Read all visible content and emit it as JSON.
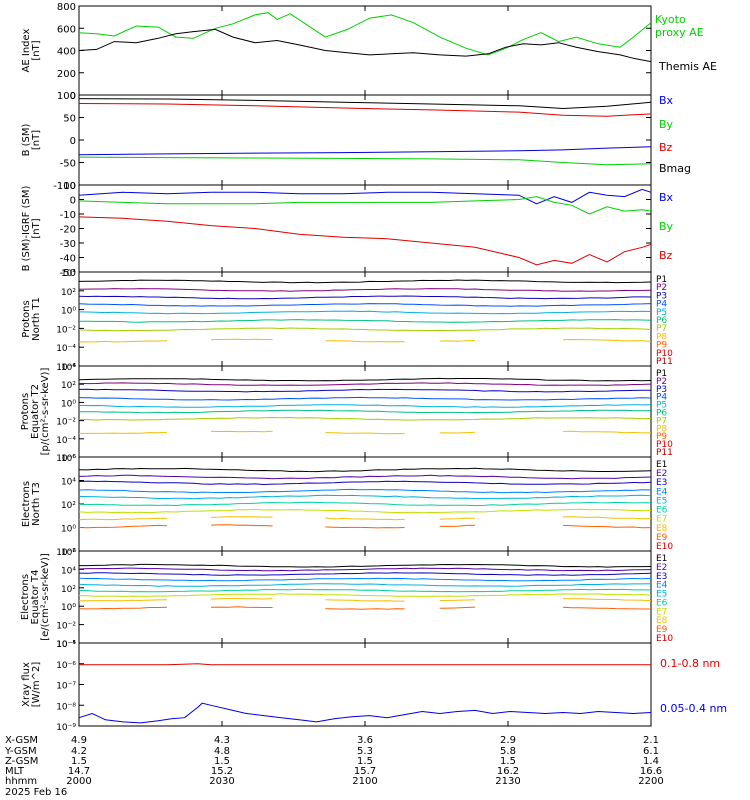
{
  "chart_data": [
    {
      "type": "line",
      "ylabel_lines": [
        "AE Index",
        "[nT]"
      ],
      "ylim": [
        0,
        800
      ],
      "yticks": [
        0,
        200,
        400,
        600,
        800
      ],
      "series": [
        {
          "name": "Kyoto proxy AE",
          "label_lines": [
            "Kyoto",
            "proxy AE"
          ],
          "color": "#00d000",
          "x": [
            0,
            4,
            8,
            13,
            18,
            22,
            26,
            31,
            35,
            40,
            43,
            45,
            48,
            53,
            56,
            61,
            66,
            71,
            76,
            82,
            88,
            93,
            97,
            101,
            105,
            109,
            113,
            118,
            123,
            126,
            130
          ],
          "y": [
            560,
            550,
            530,
            620,
            610,
            520,
            510,
            600,
            640,
            720,
            740,
            680,
            730,
            600,
            520,
            590,
            690,
            720,
            650,
            520,
            420,
            360,
            420,
            500,
            560,
            480,
            520,
            460,
            430,
            520,
            650
          ]
        },
        {
          "name": "Themis AE",
          "label_lines": [
            "Themis AE"
          ],
          "color": "#000000",
          "x": [
            0,
            4,
            8,
            13,
            18,
            22,
            26,
            31,
            35,
            40,
            45,
            50,
            56,
            61,
            66,
            71,
            76,
            82,
            88,
            93,
            97,
            101,
            105,
            109,
            113,
            118,
            123,
            126,
            130
          ],
          "y": [
            400,
            410,
            480,
            470,
            510,
            550,
            570,
            590,
            520,
            470,
            490,
            450,
            400,
            380,
            360,
            370,
            380,
            360,
            350,
            370,
            430,
            460,
            450,
            470,
            430,
            390,
            360,
            330,
            300
          ]
        }
      ]
    },
    {
      "type": "line",
      "ylabel_lines": [
        "B (SM)",
        "[nT]"
      ],
      "ylim": [
        -100,
        100
      ],
      "yticks": [
        -100,
        -50,
        0,
        50,
        100
      ],
      "series": [
        {
          "name": "Bx",
          "color": "#0000e0",
          "x": [
            0,
            20,
            40,
            60,
            80,
            100,
            110,
            120,
            130
          ],
          "y": [
            -33,
            -31,
            -29,
            -28,
            -26,
            -24,
            -22,
            -18,
            -15
          ]
        },
        {
          "name": "By",
          "color": "#00d000",
          "x": [
            0,
            20,
            40,
            60,
            80,
            100,
            110,
            120,
            130
          ],
          "y": [
            -38,
            -39,
            -40,
            -41,
            -42,
            -44,
            -50,
            -55,
            -53
          ]
        },
        {
          "name": "Bz",
          "color": "#e00000",
          "x": [
            0,
            20,
            40,
            60,
            80,
            100,
            110,
            120,
            130
          ],
          "y": [
            81,
            80,
            76,
            71,
            67,
            62,
            55,
            53,
            58
          ]
        },
        {
          "name": "Bmag",
          "color": "#000000",
          "x": [
            0,
            20,
            40,
            60,
            80,
            100,
            110,
            120,
            130
          ],
          "y": [
            92,
            91,
            88,
            84,
            80,
            76,
            70,
            75,
            84
          ]
        }
      ]
    },
    {
      "type": "line",
      "ylabel_lines": [
        "B (SM)-IGRF (SM)",
        "[nT]"
      ],
      "ylim": [
        -50,
        10
      ],
      "yticks": [
        -50,
        -40,
        -30,
        -20,
        -10,
        0,
        10
      ],
      "series": [
        {
          "name": "Bx",
          "color": "#0000e0",
          "x": [
            0,
            10,
            20,
            30,
            40,
            50,
            60,
            70,
            80,
            90,
            100,
            104,
            108,
            112,
            116,
            120,
            124,
            128,
            130
          ],
          "y": [
            3,
            5,
            4,
            5,
            5,
            4,
            4,
            5,
            5,
            4,
            3,
            -3,
            2,
            -2,
            5,
            3,
            2,
            7,
            5
          ]
        },
        {
          "name": "By",
          "color": "#00d000",
          "x": [
            0,
            10,
            20,
            30,
            40,
            50,
            60,
            70,
            80,
            90,
            100,
            104,
            108,
            112,
            116,
            120,
            124,
            128,
            130
          ],
          "y": [
            -1,
            -2,
            -3,
            -3,
            -3,
            -2,
            -2,
            -2,
            -2,
            -1,
            0,
            2,
            -2,
            -4,
            -10,
            -5,
            -8,
            -7,
            -8
          ]
        },
        {
          "name": "Bz",
          "color": "#e00000",
          "x": [
            0,
            10,
            20,
            30,
            40,
            50,
            60,
            70,
            80,
            90,
            100,
            104,
            108,
            112,
            116,
            120,
            124,
            128,
            130
          ],
          "y": [
            -12,
            -13,
            -15,
            -18,
            -20,
            -24,
            -26,
            -27,
            -30,
            -33,
            -40,
            -45,
            -42,
            -44,
            -38,
            -43,
            -36,
            -33,
            -31
          ]
        }
      ]
    },
    {
      "type": "line",
      "log": true,
      "ylabel_lines": [
        "Protons",
        "North T1"
      ],
      "yticks": [
        "10⁴",
        "10²",
        "10⁰",
        "10⁻²",
        "10⁻⁴",
        "10⁻⁶"
      ],
      "labels": [
        "P1",
        "P2",
        "P3",
        "P4",
        "P5",
        "P6",
        "P7",
        "P8",
        "P9",
        "P10",
        "P11"
      ],
      "label_colors": [
        "#000000",
        "#7d0080",
        "#1000c0",
        "#0050ff",
        "#00b0e0",
        "#00c080",
        "#a0d000",
        "#f0c000",
        "#ff6000",
        "#e00000",
        "#b00000"
      ],
      "levels": [
        3.0,
        2.1,
        1.3,
        0.5,
        -0.3,
        -1.2,
        -2.1,
        -3.3,
        null,
        null,
        null
      ]
    },
    {
      "type": "line",
      "log": true,
      "ylabel_lines": [
        "Protons",
        "Equator T2",
        "[p/(cm²-s-sr-keV)]"
      ],
      "yticks": [
        "10⁴",
        "10²",
        "10⁰",
        "10⁻²",
        "10⁻⁴",
        "10⁻⁶"
      ],
      "labels": [
        "P1",
        "P2",
        "P3",
        "P4",
        "P5",
        "P6",
        "P7",
        "P8",
        "P9",
        "P10",
        "P11"
      ],
      "label_colors": [
        "#000000",
        "#7d0080",
        "#1000c0",
        "#0050ff",
        "#00b0e0",
        "#00c080",
        "#a0d000",
        "#f0c000",
        "#ff6000",
        "#e00000",
        "#b00000"
      ],
      "levels": [
        2.5,
        2.0,
        1.3,
        0.4,
        -0.4,
        -1.0,
        -1.8,
        -3.3,
        null,
        null,
        null
      ]
    },
    {
      "type": "line",
      "log": true,
      "ylabel_lines": [
        "Electrons",
        "North T3"
      ],
      "yticks": [
        "10⁶",
        "10⁴",
        "10²",
        "10⁰",
        "10⁻²"
      ],
      "labels": [
        "E1",
        "E2",
        "E3",
        "E4",
        "E5",
        "E6",
        "E7",
        "E8",
        "E9",
        "E10"
      ],
      "label_colors": [
        "#000000",
        "#5000a0",
        "#1000c0",
        "#0080ff",
        "#00b0e0",
        "#00d0a0",
        "#c0e000",
        "#f0c000",
        "#ff6000",
        "#d00000"
      ],
      "levels": [
        4.9,
        4.3,
        3.8,
        3.1,
        2.6,
        2.0,
        1.4,
        0.8,
        0.1,
        null
      ]
    },
    {
      "type": "line",
      "log": true,
      "ylabel_lines": [
        "Electrons",
        "Equator T4",
        "[e/(cm²-s-sr-keV)]"
      ],
      "yticks": [
        "10⁶",
        "10⁴",
        "10²",
        "10⁰",
        "10⁻²",
        "10⁻⁴"
      ],
      "labels": [
        "E1",
        "E2",
        "E3",
        "E4",
        "E5",
        "E6",
        "E7",
        "E8",
        "E9",
        "E10"
      ],
      "label_colors": [
        "#000000",
        "#5000a0",
        "#1000c0",
        "#0080ff",
        "#00b0e0",
        "#00d0a0",
        "#c0e000",
        "#f0c000",
        "#ff6000",
        "#d00000"
      ],
      "levels": [
        4.4,
        4.0,
        3.5,
        2.9,
        2.3,
        1.7,
        1.2,
        0.7,
        -0.2,
        null
      ]
    },
    {
      "type": "line",
      "log": true,
      "ylabel_lines": [
        "Xray flux",
        "[W/m^2]"
      ],
      "yticks": [
        "10⁻⁵",
        "10⁻⁶",
        "10⁻⁷",
        "10⁻⁸",
        "10⁻⁹"
      ],
      "series": [
        {
          "name": "0.1-0.8 nm",
          "color": "#e00000",
          "x": [
            0,
            10,
            20,
            27,
            30,
            40,
            60,
            80,
            100,
            120,
            130
          ],
          "y": [
            -6.05,
            -6.05,
            -6.05,
            -6.0,
            -6.05,
            -6.05,
            -6.05,
            -6.05,
            -6.05,
            -6.05,
            -6.05
          ]
        },
        {
          "name": "0.05-0.4 nm",
          "color": "#0000e0",
          "x": [
            0,
            3,
            6,
            10,
            14,
            18,
            21,
            24,
            27,
            28,
            30,
            34,
            38,
            42,
            46,
            50,
            54,
            58,
            62,
            66,
            70,
            74,
            78,
            82,
            86,
            90,
            94,
            98,
            102,
            106,
            110,
            114,
            118,
            122,
            126,
            130
          ],
          "y": [
            -8.6,
            -8.4,
            -8.7,
            -8.8,
            -8.85,
            -8.75,
            -8.65,
            -8.6,
            -8.1,
            -7.9,
            -8.0,
            -8.2,
            -8.4,
            -8.5,
            -8.6,
            -8.7,
            -8.8,
            -8.65,
            -8.55,
            -8.5,
            -8.6,
            -8.45,
            -8.3,
            -8.4,
            -8.3,
            -8.25,
            -8.4,
            -8.3,
            -8.35,
            -8.4,
            -8.35,
            -8.4,
            -8.3,
            -8.35,
            -8.4,
            -8.35
          ]
        }
      ]
    }
  ],
  "axis": {
    "row_labels": [
      "X-GSM",
      "Y-GSM",
      "Z-GSM",
      "MLT",
      "hhmm"
    ],
    "columns": [
      {
        "values": [
          "4.9",
          "4.2",
          "1.5",
          "14.7",
          "2000"
        ]
      },
      {
        "values": [
          "4.3",
          "4.8",
          "1.5",
          "15.2",
          "2030"
        ]
      },
      {
        "values": [
          "3.6",
          "5.3",
          "1.5",
          "15.7",
          "2100"
        ]
      },
      {
        "values": [
          "2.9",
          "5.8",
          "1.5",
          "16.2",
          "2130"
        ]
      },
      {
        "values": [
          "2.1",
          "6.1",
          "1.4",
          "16.6",
          "2200"
        ]
      }
    ],
    "date": "2025 Feb 16"
  }
}
